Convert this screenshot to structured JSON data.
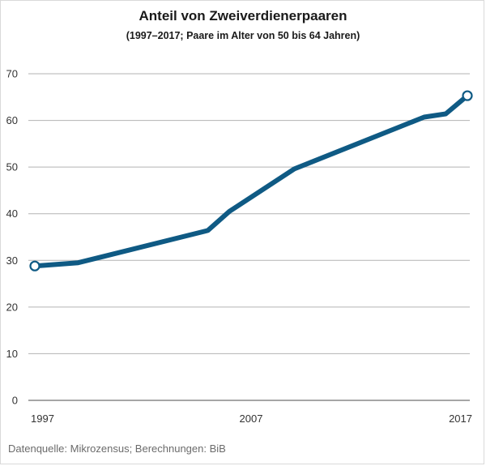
{
  "chart_data": {
    "type": "line",
    "title": "Anteil von Zweiverdienerpaaren",
    "subtitle": "(1997–2017; Paare im Alter von 50 bis 64 Jahren)",
    "xlabel": "",
    "ylabel": "",
    "ylim": [
      0,
      70
    ],
    "yticks": [
      0,
      10,
      20,
      30,
      40,
      50,
      60,
      70
    ],
    "xlim": [
      1997,
      2017
    ],
    "xticks": [
      1997,
      2007,
      2017
    ],
    "grid": true,
    "series": [
      {
        "name": "Anteil von Zweiverdienerpaaren",
        "color": "#0f5a84",
        "x": [
          1997,
          1999,
          2005,
          2006,
          2009,
          2015,
          2016,
          2017
        ],
        "y": [
          28.8,
          29.5,
          36.4,
          40.5,
          49.6,
          60.7,
          61.4,
          65.3
        ]
      }
    ],
    "highlighted_points": [
      0,
      7
    ]
  },
  "source": "Datenquelle: Mikrozensus; Berechnungen: BiB"
}
